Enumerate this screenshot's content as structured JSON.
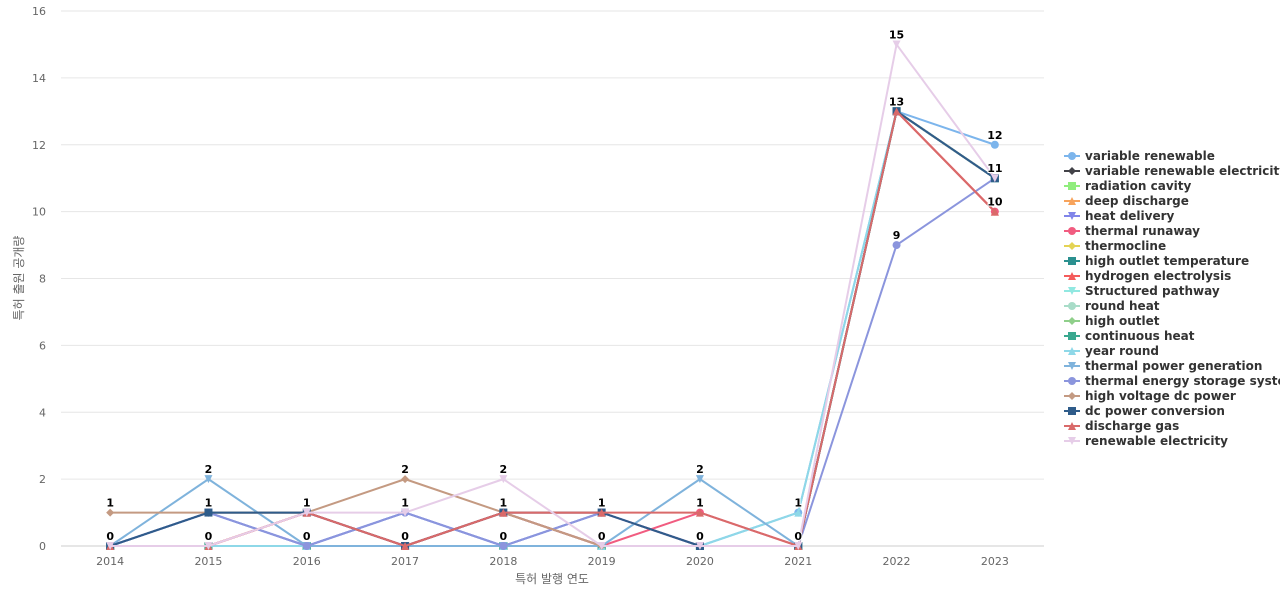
{
  "chart_data": {
    "type": "line",
    "xlabel": "특허 발행 연도",
    "ylabel": "특허 출원 공개량",
    "ylim": [
      0,
      16
    ],
    "yticks": [
      0,
      2,
      4,
      6,
      8,
      10,
      12,
      14,
      16
    ],
    "categories": [
      "2014",
      "2015",
      "2016",
      "2017",
      "2018",
      "2019",
      "2020",
      "2021",
      "2022",
      "2023"
    ],
    "grid": "horizontal",
    "legend_position": "right",
    "series": [
      {
        "name": "variable renewable",
        "color": "#7cb5ec",
        "marker": "circle",
        "values": [
          0,
          1,
          0,
          1,
          0,
          1,
          0,
          1,
          13,
          12
        ]
      },
      {
        "name": "variable renewable electricity",
        "color": "#434348",
        "marker": "diamond",
        "values": [
          0,
          1,
          1,
          0,
          1,
          0,
          0,
          0,
          13,
          11
        ]
      },
      {
        "name": "radiation cavity",
        "color": "#90ed7d",
        "marker": "square",
        "values": [
          0,
          0,
          0,
          0,
          0,
          0,
          0,
          0,
          13,
          11
        ]
      },
      {
        "name": "deep discharge",
        "color": "#f7a35c",
        "marker": "triangle",
        "values": [
          0,
          0,
          0,
          0,
          0,
          0,
          0,
          0,
          13,
          11
        ]
      },
      {
        "name": "heat delivery",
        "color": "#8085e9",
        "marker": "triangle-down",
        "values": [
          0,
          1,
          0,
          1,
          0,
          1,
          0,
          0,
          13,
          11
        ]
      },
      {
        "name": "thermal runaway",
        "color": "#f15c80",
        "marker": "circle",
        "values": [
          0,
          0,
          1,
          0,
          1,
          0,
          1,
          0,
          13,
          10
        ]
      },
      {
        "name": "thermocline",
        "color": "#e4d354",
        "marker": "diamond",
        "values": [
          0,
          0,
          0,
          0,
          0,
          0,
          0,
          0,
          13,
          11
        ]
      },
      {
        "name": "high outlet temperature",
        "color": "#2b908f",
        "marker": "square",
        "values": [
          0,
          0,
          0,
          0,
          0,
          0,
          0,
          0,
          13,
          11
        ]
      },
      {
        "name": "hydrogen electrolysis",
        "color": "#f45b5b",
        "marker": "triangle",
        "values": [
          0,
          0,
          1,
          0,
          1,
          1,
          0,
          0,
          13,
          10
        ]
      },
      {
        "name": "Structured pathway",
        "color": "#91e8e1",
        "marker": "triangle-down",
        "values": [
          0,
          0,
          0,
          0,
          0,
          0,
          0,
          0,
          13,
          11
        ]
      },
      {
        "name": "round heat",
        "color": "#a8dcc8",
        "marker": "circle",
        "values": [
          0,
          0,
          0,
          0,
          0,
          0,
          0,
          0,
          13,
          11
        ]
      },
      {
        "name": "high outlet",
        "color": "#8fcf8a",
        "marker": "diamond",
        "values": [
          0,
          0,
          0,
          0,
          0,
          0,
          0,
          0,
          13,
          11
        ]
      },
      {
        "name": "continuous heat",
        "color": "#3aa88f",
        "marker": "square",
        "values": [
          0,
          0,
          0,
          0,
          0,
          0,
          0,
          0,
          13,
          11
        ]
      },
      {
        "name": "year round",
        "color": "#8ed8e8",
        "marker": "triangle",
        "values": [
          0,
          0,
          0,
          0,
          0,
          0,
          0,
          1,
          13,
          11
        ]
      },
      {
        "name": "thermal power generation",
        "color": "#7fb3dc",
        "marker": "triangle-down",
        "values": [
          0,
          2,
          0,
          0,
          0,
          0,
          2,
          0,
          13,
          11
        ]
      },
      {
        "name": "thermal energy storage system",
        "color": "#8b95dd",
        "marker": "circle",
        "values": [
          0,
          1,
          0,
          1,
          0,
          1,
          0,
          0,
          9,
          11
        ]
      },
      {
        "name": "high voltage dc power",
        "color": "#c49a82",
        "marker": "diamond",
        "values": [
          1,
          1,
          1,
          2,
          1,
          0,
          0,
          0,
          13,
          11
        ]
      },
      {
        "name": "dc power conversion",
        "color": "#2f5c8a",
        "marker": "square",
        "values": [
          0,
          1,
          1,
          0,
          1,
          1,
          0,
          0,
          13,
          11
        ]
      },
      {
        "name": "discharge gas",
        "color": "#d96a6a",
        "marker": "triangle",
        "values": [
          0,
          0,
          1,
          0,
          1,
          1,
          1,
          0,
          13,
          10
        ]
      },
      {
        "name": "renewable electricity",
        "color": "#e6cde8",
        "marker": "triangle-down",
        "values": [
          0,
          0,
          1,
          1,
          2,
          0,
          0,
          0,
          15,
          11
        ]
      }
    ],
    "data_labels": [
      {
        "x": "2014",
        "y": 1,
        "text": "1"
      },
      {
        "x": "2014",
        "y": 0,
        "text": "0"
      },
      {
        "x": "2015",
        "y": 2,
        "text": "2"
      },
      {
        "x": "2015",
        "y": 1,
        "text": "1"
      },
      {
        "x": "2015",
        "y": 0,
        "text": "0"
      },
      {
        "x": "2016",
        "y": 1,
        "text": "1"
      },
      {
        "x": "2016",
        "y": 0,
        "text": "0"
      },
      {
        "x": "2017",
        "y": 2,
        "text": "2"
      },
      {
        "x": "2017",
        "y": 1,
        "text": "1"
      },
      {
        "x": "2017",
        "y": 0,
        "text": "0"
      },
      {
        "x": "2018",
        "y": 2,
        "text": "2"
      },
      {
        "x": "2018",
        "y": 1,
        "text": "1"
      },
      {
        "x": "2018",
        "y": 0,
        "text": "0"
      },
      {
        "x": "2019",
        "y": 1,
        "text": "1"
      },
      {
        "x": "2019",
        "y": 0,
        "text": "0"
      },
      {
        "x": "2020",
        "y": 2,
        "text": "2"
      },
      {
        "x": "2020",
        "y": 1,
        "text": "1"
      },
      {
        "x": "2020",
        "y": 0,
        "text": "0"
      },
      {
        "x": "2021",
        "y": 1,
        "text": "1"
      },
      {
        "x": "2021",
        "y": 0,
        "text": "0"
      },
      {
        "x": "2022",
        "y": 15,
        "text": "15"
      },
      {
        "x": "2022",
        "y": 13,
        "text": "13"
      },
      {
        "x": "2022",
        "y": 9,
        "text": "9"
      },
      {
        "x": "2023",
        "y": 12,
        "text": "12"
      },
      {
        "x": "2023",
        "y": 11,
        "text": "11"
      },
      {
        "x": "2023",
        "y": 10,
        "text": "10"
      }
    ]
  }
}
